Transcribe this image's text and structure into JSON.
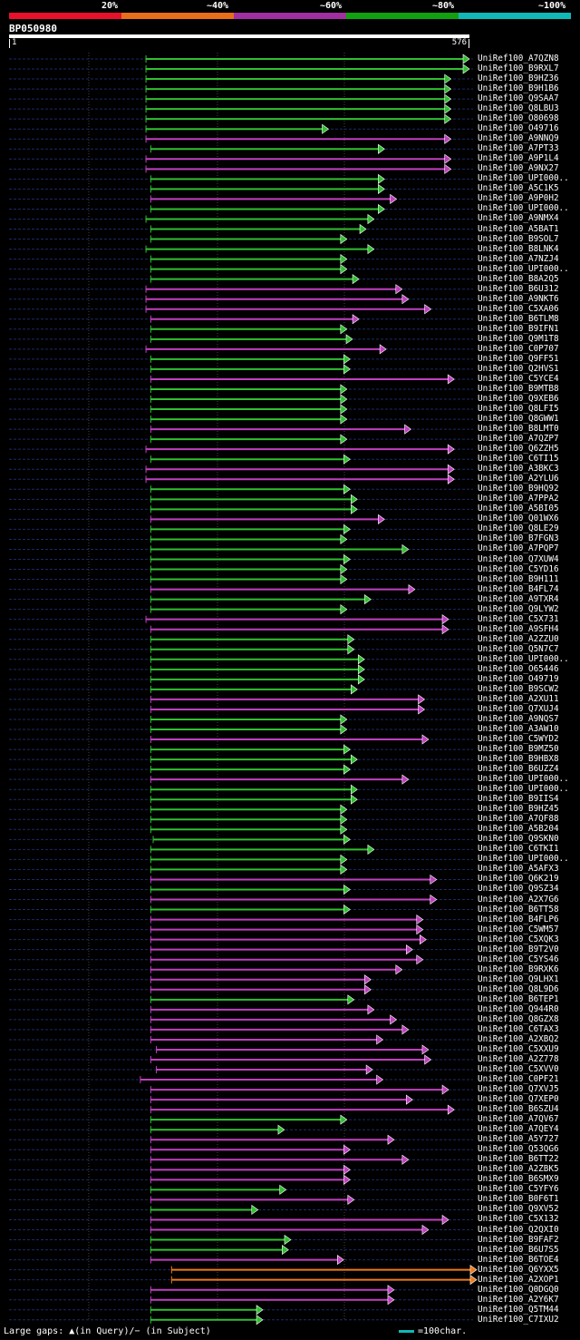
{
  "legend": {
    "labels": [
      "20%",
      "~40%",
      "~60%",
      "~80%",
      "~100%"
    ],
    "colors": [
      "#e8102a",
      "#e86e1a",
      "#a030a0",
      "#10a010",
      "#10b8b8"
    ]
  },
  "query": {
    "id": "BP050980",
    "start": "1",
    "end": "576"
  },
  "colors": {
    "green": "#30c030",
    "magenta": "#c040c0",
    "orange": "#f07a18",
    "background": "#000000",
    "ruler": "#ffffff"
  },
  "footer": {
    "gaps_text": "Large gaps: ▲(in Query)/− (in Subject)",
    "scale_text": "=100char.",
    "scale_color": "#10b8b8"
  },
  "chart_data": {
    "type": "alignment",
    "query_length": 576,
    "hits": [
      {
        "label": "UniRef100_A7QZN8",
        "color": "green",
        "start": 172,
        "end": 576
      },
      {
        "label": "UniRef100_B9RXL7",
        "color": "green",
        "start": 172,
        "end": 576
      },
      {
        "label": "UniRef100_B9HZ36",
        "color": "green",
        "start": 172,
        "end": 553
      },
      {
        "label": "UniRef100_B9H1B6",
        "color": "green",
        "start": 172,
        "end": 553
      },
      {
        "label": "UniRef100_Q9SAA7",
        "color": "green",
        "start": 172,
        "end": 553
      },
      {
        "label": "UniRef100_Q8LBU3",
        "color": "green",
        "start": 172,
        "end": 553
      },
      {
        "label": "UniRef100_O80698",
        "color": "green",
        "start": 172,
        "end": 553
      },
      {
        "label": "UniRef100_O49716",
        "color": "green",
        "start": 172,
        "end": 400
      },
      {
        "label": "UniRef100_A9NNQ9",
        "color": "magenta",
        "start": 172,
        "end": 553
      },
      {
        "label": "UniRef100_A7PT33",
        "color": "green",
        "start": 178,
        "end": 470
      },
      {
        "label": "UniRef100_A9P1L4",
        "color": "magenta",
        "start": 172,
        "end": 553
      },
      {
        "label": "UniRef100_A9NX27",
        "color": "magenta",
        "start": 172,
        "end": 553
      },
      {
        "label": "UniRef100_UPI000..",
        "color": "green",
        "start": 178,
        "end": 470
      },
      {
        "label": "UniRef100_A5C1K5",
        "color": "green",
        "start": 178,
        "end": 470
      },
      {
        "label": "UniRef100_A9P0H2",
        "color": "magenta",
        "start": 178,
        "end": 485
      },
      {
        "label": "UniRef100_UPI000..",
        "color": "green",
        "start": 178,
        "end": 470
      },
      {
        "label": "UniRef100_A9NMX4",
        "color": "green",
        "start": 172,
        "end": 457
      },
      {
        "label": "UniRef100_A5BAT1",
        "color": "green",
        "start": 178,
        "end": 447
      },
      {
        "label": "UniRef100_B9SOL7",
        "color": "green",
        "start": 178,
        "end": 423
      },
      {
        "label": "UniRef100_B8LNK4",
        "color": "green",
        "start": 172,
        "end": 457
      },
      {
        "label": "UniRef100_A7NZJ4",
        "color": "green",
        "start": 178,
        "end": 423
      },
      {
        "label": "UniRef100_UPI000..",
        "color": "green",
        "start": 178,
        "end": 423
      },
      {
        "label": "UniRef100_B8A2Q5",
        "color": "green",
        "start": 178,
        "end": 438
      },
      {
        "label": "UniRef100_B6U312",
        "color": "magenta",
        "start": 172,
        "end": 492
      },
      {
        "label": "UniRef100_A9NKT6",
        "color": "magenta",
        "start": 172,
        "end": 500
      },
      {
        "label": "UniRef100_C5XA06",
        "color": "magenta",
        "start": 172,
        "end": 528
      },
      {
        "label": "UniRef100_B6TLM8",
        "color": "magenta",
        "start": 178,
        "end": 438
      },
      {
        "label": "UniRef100_B9IFN1",
        "color": "green",
        "start": 178,
        "end": 423
      },
      {
        "label": "UniRef100_Q9M1T8",
        "color": "green",
        "start": 178,
        "end": 430
      },
      {
        "label": "UniRef100_C0P707",
        "color": "magenta",
        "start": 172,
        "end": 472
      },
      {
        "label": "UniRef100_Q9FF51",
        "color": "green",
        "start": 178,
        "end": 427
      },
      {
        "label": "UniRef100_Q2HVS1",
        "color": "green",
        "start": 178,
        "end": 427
      },
      {
        "label": "UniRef100_C5YCE4",
        "color": "magenta",
        "start": 178,
        "end": 557
      },
      {
        "label": "UniRef100_B9MTB8",
        "color": "green",
        "start": 178,
        "end": 423
      },
      {
        "label": "UniRef100_Q9XEB6",
        "color": "green",
        "start": 178,
        "end": 423
      },
      {
        "label": "UniRef100_Q8LFI5",
        "color": "green",
        "start": 178,
        "end": 423
      },
      {
        "label": "UniRef100_Q8GWW1",
        "color": "green",
        "start": 178,
        "end": 423
      },
      {
        "label": "UniRef100_B8LMT0",
        "color": "magenta",
        "start": 178,
        "end": 503
      },
      {
        "label": "UniRef100_A7QZP7",
        "color": "green",
        "start": 178,
        "end": 423
      },
      {
        "label": "UniRef100_Q6ZZH5",
        "color": "magenta",
        "start": 172,
        "end": 557
      },
      {
        "label": "UniRef100_C6TI15",
        "color": "green",
        "start": 178,
        "end": 427
      },
      {
        "label": "UniRef100_A3BKC3",
        "color": "magenta",
        "start": 172,
        "end": 557
      },
      {
        "label": "UniRef100_A2YLU6",
        "color": "magenta",
        "start": 172,
        "end": 557
      },
      {
        "label": "UniRef100_B9HQ92",
        "color": "green",
        "start": 178,
        "end": 427
      },
      {
        "label": "UniRef100_A7PPA2",
        "color": "green",
        "start": 178,
        "end": 436
      },
      {
        "label": "UniRef100_A5BI05",
        "color": "green",
        "start": 178,
        "end": 436
      },
      {
        "label": "UniRef100_Q01WX6",
        "color": "magenta",
        "start": 178,
        "end": 470
      },
      {
        "label": "UniRef100_Q8LE29",
        "color": "green",
        "start": 178,
        "end": 427
      },
      {
        "label": "UniRef100_B7FGN3",
        "color": "green",
        "start": 178,
        "end": 423
      },
      {
        "label": "UniRef100_A7PQP7",
        "color": "green",
        "start": 178,
        "end": 500
      },
      {
        "label": "UniRef100_Q7XUW4",
        "color": "green",
        "start": 178,
        "end": 427
      },
      {
        "label": "UniRef100_C5YD16",
        "color": "green",
        "start": 178,
        "end": 423
      },
      {
        "label": "UniRef100_B9H111",
        "color": "green",
        "start": 178,
        "end": 423
      },
      {
        "label": "UniRef100_B4FL74",
        "color": "magenta",
        "start": 178,
        "end": 508
      },
      {
        "label": "UniRef100_A9TXR4",
        "color": "green",
        "start": 178,
        "end": 453
      },
      {
        "label": "UniRef100_Q9LYW2",
        "color": "green",
        "start": 178,
        "end": 423
      },
      {
        "label": "UniRef100_C5X731",
        "color": "magenta",
        "start": 172,
        "end": 550
      },
      {
        "label": "UniRef100_A9SFH4",
        "color": "magenta",
        "start": 178,
        "end": 550
      },
      {
        "label": "UniRef100_A2ZZU0",
        "color": "green",
        "start": 178,
        "end": 432
      },
      {
        "label": "UniRef100_Q5N7C7",
        "color": "green",
        "start": 178,
        "end": 432
      },
      {
        "label": "UniRef100_UPI000..",
        "color": "green",
        "start": 178,
        "end": 445
      },
      {
        "label": "UniRef100_O65446",
        "color": "green",
        "start": 178,
        "end": 445
      },
      {
        "label": "UniRef100_O49719",
        "color": "green",
        "start": 178,
        "end": 445
      },
      {
        "label": "UniRef100_B9SCW2",
        "color": "green",
        "start": 178,
        "end": 436
      },
      {
        "label": "UniRef100_A2XU11",
        "color": "magenta",
        "start": 178,
        "end": 520
      },
      {
        "label": "UniRef100_Q7XUJ4",
        "color": "magenta",
        "start": 178,
        "end": 520
      },
      {
        "label": "UniRef100_A9NQS7",
        "color": "green",
        "start": 178,
        "end": 423
      },
      {
        "label": "UniRef100_A3AW10",
        "color": "green",
        "start": 178,
        "end": 423
      },
      {
        "label": "UniRef100_C5WYD2",
        "color": "magenta",
        "start": 178,
        "end": 525
      },
      {
        "label": "UniRef100_B9MZ50",
        "color": "green",
        "start": 178,
        "end": 427
      },
      {
        "label": "UniRef100_B9HBX8",
        "color": "green",
        "start": 178,
        "end": 436
      },
      {
        "label": "UniRef100_B6UZZ4",
        "color": "green",
        "start": 178,
        "end": 427
      },
      {
        "label": "UniRef100_UPI000..",
        "color": "magenta",
        "start": 178,
        "end": 500
      },
      {
        "label": "UniRef100_UPI000..",
        "color": "green",
        "start": 178,
        "end": 436
      },
      {
        "label": "UniRef100_B9IIS4",
        "color": "green",
        "start": 178,
        "end": 436
      },
      {
        "label": "UniRef100_B9HZ45",
        "color": "green",
        "start": 178,
        "end": 423
      },
      {
        "label": "UniRef100_A7QF88",
        "color": "green",
        "start": 178,
        "end": 423
      },
      {
        "label": "UniRef100_A5B204",
        "color": "green",
        "start": 178,
        "end": 423
      },
      {
        "label": "UniRef100_Q9SKN0",
        "color": "green",
        "start": 181,
        "end": 427
      },
      {
        "label": "UniRef100_C6TKI1",
        "color": "green",
        "start": 178,
        "end": 457
      },
      {
        "label": "UniRef100_UPI000..",
        "color": "green",
        "start": 178,
        "end": 423
      },
      {
        "label": "UniRef100_A5AFX3",
        "color": "green",
        "start": 178,
        "end": 423
      },
      {
        "label": "UniRef100_Q6K219",
        "color": "magenta",
        "start": 178,
        "end": 535
      },
      {
        "label": "UniRef100_Q9SZ34",
        "color": "green",
        "start": 178,
        "end": 427
      },
      {
        "label": "UniRef100_A2X7G6",
        "color": "magenta",
        "start": 178,
        "end": 535
      },
      {
        "label": "UniRef100_B6TT58",
        "color": "green",
        "start": 178,
        "end": 427
      },
      {
        "label": "UniRef100_B4FLP6",
        "color": "magenta",
        "start": 178,
        "end": 518
      },
      {
        "label": "UniRef100_C5WM57",
        "color": "magenta",
        "start": 178,
        "end": 518
      },
      {
        "label": "UniRef100_C5XQK3",
        "color": "magenta",
        "start": 178,
        "end": 522
      },
      {
        "label": "UniRef100_B9T2V0",
        "color": "magenta",
        "start": 178,
        "end": 505
      },
      {
        "label": "UniRef100_C5YS46",
        "color": "magenta",
        "start": 178,
        "end": 518
      },
      {
        "label": "UniRef100_B9RXK6",
        "color": "magenta",
        "start": 178,
        "end": 492
      },
      {
        "label": "UniRef100_Q9LHX1",
        "color": "magenta",
        "start": 178,
        "end": 453
      },
      {
        "label": "UniRef100_Q8L9D6",
        "color": "magenta",
        "start": 178,
        "end": 453
      },
      {
        "label": "UniRef100_B6TEP1",
        "color": "green",
        "start": 178,
        "end": 432
      },
      {
        "label": "UniRef100_Q944R0",
        "color": "magenta",
        "start": 178,
        "end": 457
      },
      {
        "label": "UniRef100_Q8GZX8",
        "color": "magenta",
        "start": 178,
        "end": 485
      },
      {
        "label": "UniRef100_C6TAX3",
        "color": "magenta",
        "start": 178,
        "end": 500
      },
      {
        "label": "UniRef100_A2XBQ2",
        "color": "magenta",
        "start": 178,
        "end": 468
      },
      {
        "label": "UniRef100_C5XXU9",
        "color": "magenta",
        "start": 185,
        "end": 525
      },
      {
        "label": "UniRef100_A2Z778",
        "color": "magenta",
        "start": 178,
        "end": 528
      },
      {
        "label": "UniRef100_C5XVV0",
        "color": "magenta",
        "start": 185,
        "end": 455
      },
      {
        "label": "UniRef100_C0PF21",
        "color": "magenta",
        "start": 165,
        "end": 468
      },
      {
        "label": "UniRef100_Q7XVJ5",
        "color": "magenta",
        "start": 178,
        "end": 550
      },
      {
        "label": "UniRef100_Q7XEP0",
        "color": "magenta",
        "start": 178,
        "end": 505
      },
      {
        "label": "UniRef100_B6SZU4",
        "color": "magenta",
        "start": 178,
        "end": 557
      },
      {
        "label": "UniRef100_A7QV67",
        "color": "green",
        "start": 178,
        "end": 423
      },
      {
        "label": "UniRef100_A7QEY4",
        "color": "green",
        "start": 178,
        "end": 345
      },
      {
        "label": "UniRef100_A5Y727",
        "color": "magenta",
        "start": 178,
        "end": 482
      },
      {
        "label": "UniRef100_Q53QG6",
        "color": "magenta",
        "start": 178,
        "end": 427
      },
      {
        "label": "UniRef100_B6TT22",
        "color": "magenta",
        "start": 178,
        "end": 500
      },
      {
        "label": "UniRef100_A2ZBK5",
        "color": "magenta",
        "start": 178,
        "end": 427
      },
      {
        "label": "UniRef100_B6SMX9",
        "color": "magenta",
        "start": 178,
        "end": 427
      },
      {
        "label": "UniRef100_C5YFY6",
        "color": "green",
        "start": 178,
        "end": 347
      },
      {
        "label": "UniRef100_B0F6T1",
        "color": "magenta",
        "start": 178,
        "end": 432
      },
      {
        "label": "UniRef100_Q9XV52",
        "color": "green",
        "start": 178,
        "end": 312
      },
      {
        "label": "UniRef100_C5X132",
        "color": "magenta",
        "start": 178,
        "end": 550
      },
      {
        "label": "UniRef100_Q2QXI0",
        "color": "magenta",
        "start": 178,
        "end": 525
      },
      {
        "label": "UniRef100_B9FAF2",
        "color": "green",
        "start": 178,
        "end": 353
      },
      {
        "label": "UniRef100_B6U7S5",
        "color": "green",
        "start": 178,
        "end": 350
      },
      {
        "label": "UniRef100_B6TOE4",
        "color": "magenta",
        "start": 178,
        "end": 419
      },
      {
        "label": "UniRef100_Q6YXX5",
        "color": "orange",
        "start": 204,
        "end": 585
      },
      {
        "label": "UniRef100_A2XOP1",
        "color": "orange",
        "start": 204,
        "end": 585
      },
      {
        "label": "UniRef100_Q0DGQ0",
        "color": "magenta",
        "start": 178,
        "end": 482
      },
      {
        "label": "UniRef100_A2Y6K7",
        "color": "magenta",
        "start": 178,
        "end": 482
      },
      {
        "label": "UniRef100_Q5TM44",
        "color": "green",
        "start": 178,
        "end": 318
      },
      {
        "label": "UniRef100_C7IXU2",
        "color": "green",
        "start": 178,
        "end": 318
      }
    ]
  }
}
